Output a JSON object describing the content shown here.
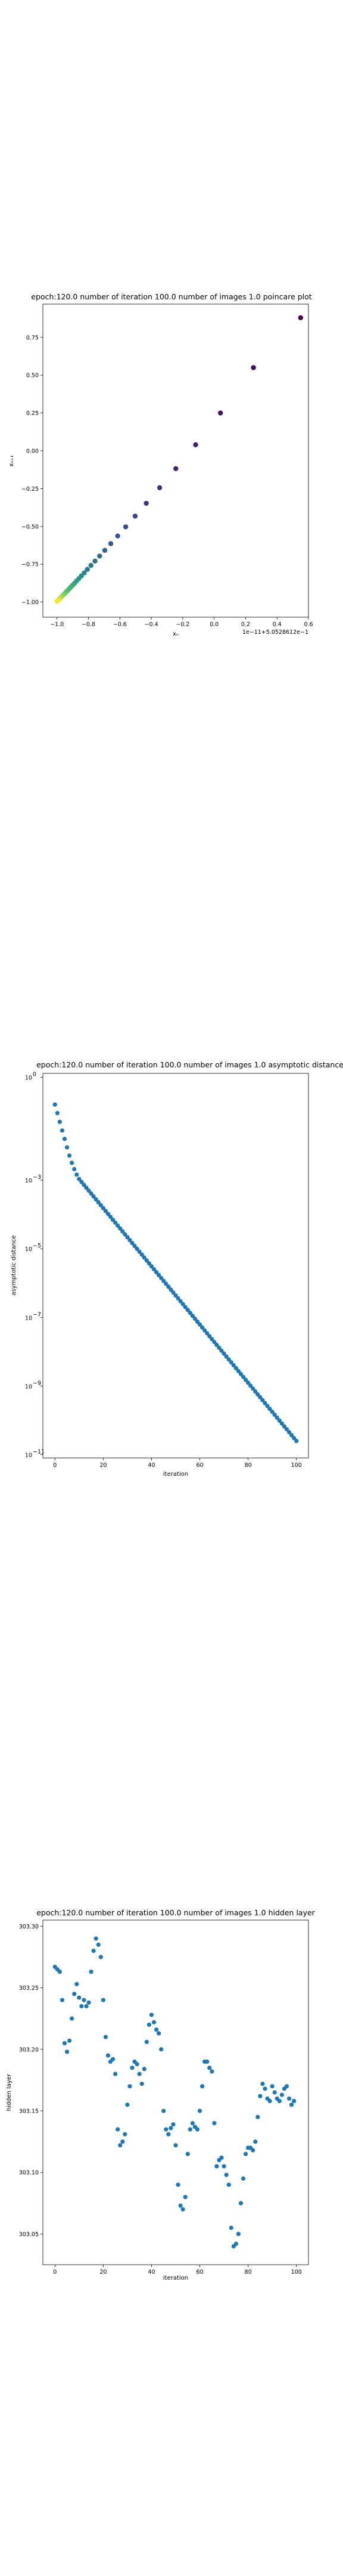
{
  "chart_data": [
    {
      "type": "scatter",
      "title": "epoch:120.0 number of iteration 100.0 number of images 1.0 poincare plot",
      "xlabel": "xₙ",
      "ylabel": "xₙ₊₁",
      "offset_label": "1e−11+5.0528612e−1",
      "colormap": "viridis",
      "x": [
        -1.0,
        -0.995,
        -0.99,
        -0.985,
        -0.98,
        -0.974,
        -0.968,
        -0.962,
        -0.955,
        -0.948,
        -0.94,
        -0.931,
        -0.922,
        -0.912,
        -0.901,
        -0.889,
        -0.876,
        -0.861,
        -0.845,
        -0.827,
        -0.807,
        -0.784,
        -0.758,
        -0.729,
        -0.696,
        -0.658,
        -0.614,
        -0.563,
        -0.503,
        -0.432,
        -0.347,
        -0.244,
        -0.118,
        0.04,
        0.25,
        0.55
      ],
      "y": [
        -0.995,
        -0.99,
        -0.985,
        -0.98,
        -0.974,
        -0.968,
        -0.962,
        -0.955,
        -0.948,
        -0.94,
        -0.931,
        -0.922,
        -0.912,
        -0.901,
        -0.889,
        -0.876,
        -0.861,
        -0.845,
        -0.827,
        -0.807,
        -0.784,
        -0.758,
        -0.729,
        -0.696,
        -0.658,
        -0.614,
        -0.563,
        -0.503,
        -0.432,
        -0.347,
        -0.244,
        -0.118,
        0.04,
        0.25,
        0.55,
        0.88
      ],
      "xlim": [
        -1.09,
        0.6
      ],
      "ylim": [
        -1.1,
        0.97
      ],
      "xticks": [
        -1.0,
        -0.8,
        -0.6,
        -0.4,
        -0.2,
        0.0,
        0.2,
        0.4,
        0.6
      ],
      "xtick_labels": [
        "−1.0",
        "−0.8",
        "−0.6",
        "−0.4",
        "−0.2",
        "0.0",
        "0.2",
        "0.4",
        "0.6"
      ],
      "yticks": [
        -1.0,
        -0.75,
        -0.5,
        -0.25,
        0.0,
        0.25,
        0.5,
        0.75
      ],
      "ytick_labels": [
        "−1.00",
        "−0.75",
        "−0.50",
        "−0.25",
        "0.00",
        "0.25",
        "0.50",
        "0.75"
      ],
      "grid": false
    },
    {
      "type": "scatter",
      "title": "epoch:120.0 number of iteration 100.0  number of images 1.0 asymptotic distance",
      "xlabel": "iteration",
      "ylabel": "asymptotic distance",
      "yscale": "log",
      "color": "#1f77b4",
      "x_range": [
        0,
        100
      ],
      "points": [
        [
          0,
          0.16
        ],
        [
          1,
          0.09
        ],
        [
          2,
          0.05
        ],
        [
          3,
          0.028
        ],
        [
          4,
          0.016
        ],
        [
          5,
          0.009
        ],
        [
          6,
          0.0052
        ],
        [
          7,
          0.0032
        ],
        [
          8,
          0.0021
        ],
        [
          9,
          0.00145
        ],
        [
          10,
          0.00108
        ],
        [
          100,
          2.5e-11
        ]
      ],
      "xlim": [
        -5,
        105
      ],
      "ylim": [
        8e-12,
        1.3
      ],
      "xticks": [
        0,
        20,
        40,
        60,
        80,
        100
      ],
      "xtick_labels": [
        "0",
        "20",
        "40",
        "60",
        "80",
        "100"
      ],
      "yticks": [
        1,
        0.001,
        1e-05,
        1e-07,
        1e-09,
        1e-11
      ],
      "ytick_mantissa": [
        "10",
        "10",
        "10",
        "10",
        "10",
        "10"
      ],
      "ytick_exponents": [
        "0",
        "−3",
        "−5",
        "−7",
        "−9",
        "−11"
      ],
      "grid": false
    },
    {
      "type": "scatter",
      "title": "epoch:120.0 number of iteration 100.0  number of images 1.0 hidden layer",
      "xlabel": "iteration",
      "ylabel": "hidden layer",
      "color": "#1f77b4",
      "x": [
        0,
        1,
        2,
        3,
        4,
        5,
        6,
        7,
        8,
        9,
        10,
        11,
        12,
        13,
        14,
        15,
        16,
        17,
        18,
        19,
        20,
        21,
        22,
        23,
        24,
        25,
        26,
        27,
        28,
        29,
        30,
        31,
        32,
        33,
        34,
        35,
        36,
        37,
        38,
        39,
        40,
        41,
        42,
        43,
        44,
        45,
        46,
        47,
        48,
        49,
        50,
        51,
        52,
        53,
        54,
        55,
        56,
        57,
        58,
        59,
        60,
        61,
        62,
        63,
        64,
        65,
        66,
        67,
        68,
        69,
        70,
        71,
        72,
        73,
        74,
        75,
        76,
        77,
        78,
        79,
        80,
        81,
        82,
        83,
        84,
        85,
        86,
        87,
        88,
        89,
        90,
        91,
        92,
        93,
        94,
        95,
        96,
        97,
        98,
        99
      ],
      "y": [
        303.267,
        303.265,
        303.263,
        303.24,
        303.205,
        303.198,
        303.207,
        303.225,
        303.245,
        303.253,
        303.242,
        303.235,
        303.24,
        303.235,
        303.238,
        303.263,
        303.28,
        303.29,
        303.285,
        303.275,
        303.24,
        303.21,
        303.195,
        303.19,
        303.192,
        303.18,
        303.135,
        303.122,
        303.125,
        303.131,
        303.155,
        303.17,
        303.185,
        303.19,
        303.188,
        303.18,
        303.172,
        303.184,
        303.206,
        303.22,
        303.228,
        303.222,
        303.216,
        303.213,
        303.2,
        303.15,
        303.135,
        303.131,
        303.136,
        303.139,
        303.122,
        303.09,
        303.073,
        303.07,
        303.08,
        303.115,
        303.135,
        303.14,
        303.137,
        303.135,
        303.15,
        303.17,
        303.19,
        303.19,
        303.185,
        303.182,
        303.14,
        303.105,
        303.11,
        303.112,
        303.105,
        303.098,
        303.09,
        303.055,
        303.04,
        303.042,
        303.05,
        303.075,
        303.095,
        303.115,
        303.12,
        303.12,
        303.118,
        303.125,
        303.145,
        303.162,
        303.172,
        303.168,
        303.16,
        303.158,
        303.17,
        303.165,
        303.16,
        303.158,
        303.163,
        303.168,
        303.17,
        303.16,
        303.155,
        303.158
      ],
      "xlim": [
        -5,
        105
      ],
      "ylim": [
        303.025,
        303.305
      ],
      "xticks": [
        0,
        20,
        40,
        60,
        80,
        100
      ],
      "xtick_labels": [
        "0",
        "20",
        "40",
        "60",
        "80",
        "100"
      ],
      "yticks": [
        303.05,
        303.1,
        303.15,
        303.2,
        303.25,
        303.3
      ],
      "ytick_labels": [
        "303.05",
        "303.10",
        "303.15",
        "303.20",
        "303.25",
        "303.30"
      ],
      "grid": false
    }
  ]
}
